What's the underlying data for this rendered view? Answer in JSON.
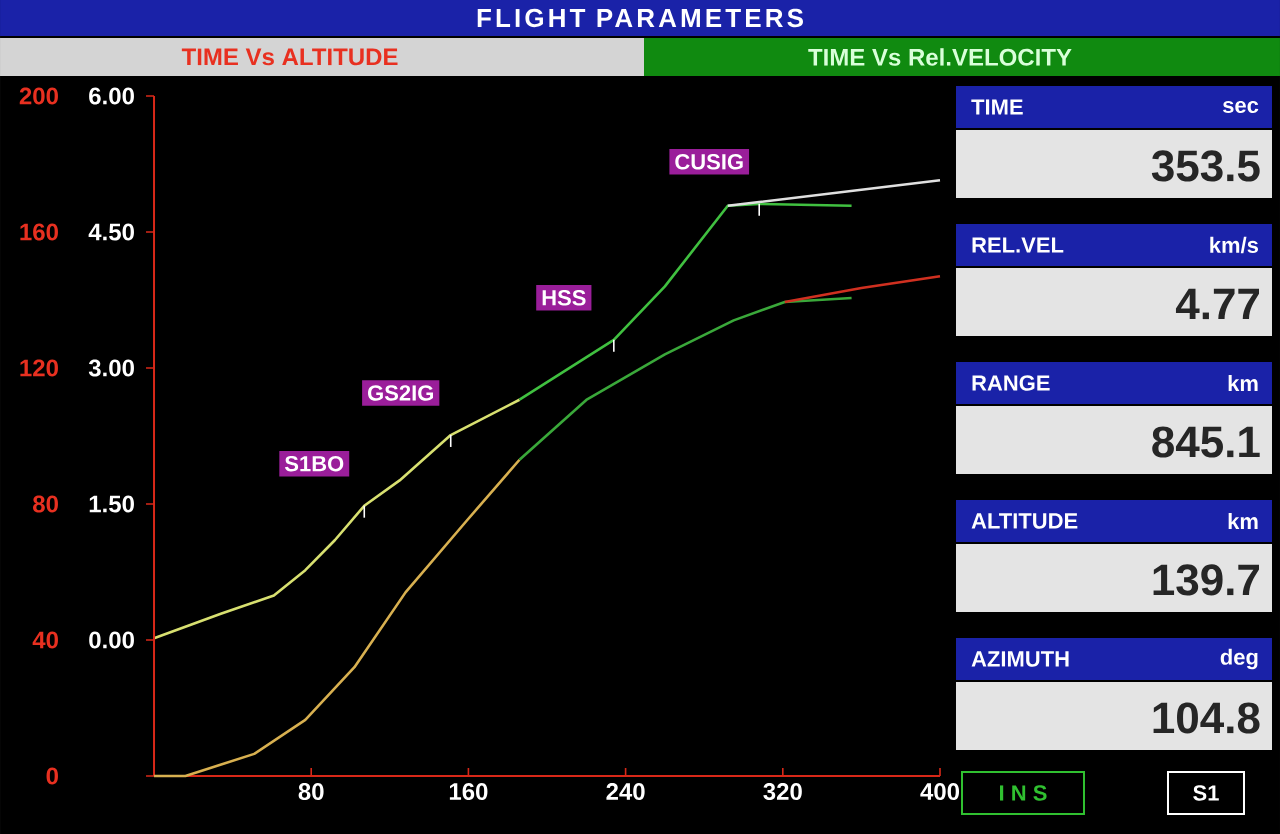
{
  "chart_data": [
    {
      "type": "line",
      "title": "FLIGHT PARAMETERS",
      "xlim": [
        0,
        400
      ],
      "xticks": [
        80,
        160,
        240,
        320,
        400
      ],
      "ylim": [
        0,
        200
      ],
      "yticks": [
        0,
        40,
        80,
        120,
        160,
        200
      ],
      "y2lim": [
        -1.5,
        6
      ],
      "y2ticks": [
        {
          "value": 0,
          "label": "0.00"
        },
        {
          "value": 1.5,
          "label": "1.50"
        },
        {
          "value": 3,
          "label": "3.00"
        },
        {
          "value": 4.5,
          "label": "4.50"
        },
        {
          "value": 6,
          "label": "6.00"
        }
      ],
      "series": [
        {
          "color": "#d8e070",
          "axis": "y2",
          "x": [
            0,
            34,
            61,
            77,
            92,
            107,
            125,
            151,
            186
          ],
          "values": [
            0.02,
            0.29,
            0.49,
            0.77,
            1.1,
            1.48,
            1.76,
            2.26,
            2.65
          ]
        },
        {
          "color": "#40c040",
          "axis": "y2",
          "x": [
            186,
            234,
            260,
            292,
            308,
            355
          ],
          "values": [
            2.65,
            3.31,
            3.9,
            4.79,
            4.81,
            4.79
          ]
        },
        {
          "color": "#e0e0e0",
          "axis": "y2",
          "x": [
            292,
            308,
            400
          ],
          "values": [
            4.79,
            4.83,
            5.07
          ]
        },
        {
          "color": "#d8b050",
          "x": [
            0,
            16,
            51,
            77,
            102,
            128,
            159,
            186
          ],
          "values": [
            0,
            0,
            6.5,
            16.5,
            32,
            54,
            75,
            93
          ]
        },
        {
          "color": "#3aa83a",
          "x": [
            186,
            220,
            260,
            295,
            321,
            355
          ],
          "values": [
            93,
            110.6,
            124,
            134,
            139.4,
            140.6
          ]
        },
        {
          "color": "#d03020",
          "x": [
            321,
            360,
            400
          ],
          "values": [
            139.4,
            143.5,
            147
          ]
        }
      ],
      "annotations": [
        {
          "text": "S1BO",
          "x": 107,
          "y": 79.5
        },
        {
          "text": "GS2IG",
          "x": 151,
          "y": 100.3
        },
        {
          "text": "HSS",
          "x": 234,
          "y": 128.3
        },
        {
          "text": "CUSIG",
          "x": 308,
          "y": 168.3
        },
        "TIME Vs ALTITUDE",
        "TIME Vs Rel.VELOCITY"
      ]
    },
    {
      "type": "other",
      "annotations": [
        "TIME",
        "sec",
        "353.5",
        "REL.VEL",
        "km/s",
        "4.77",
        "RANGE",
        "km",
        "845.1",
        "ALTITUDE",
        "km",
        "139.7",
        "AZIMUTH",
        "deg",
        "104.8",
        "I N S",
        "S1"
      ]
    }
  ]
}
